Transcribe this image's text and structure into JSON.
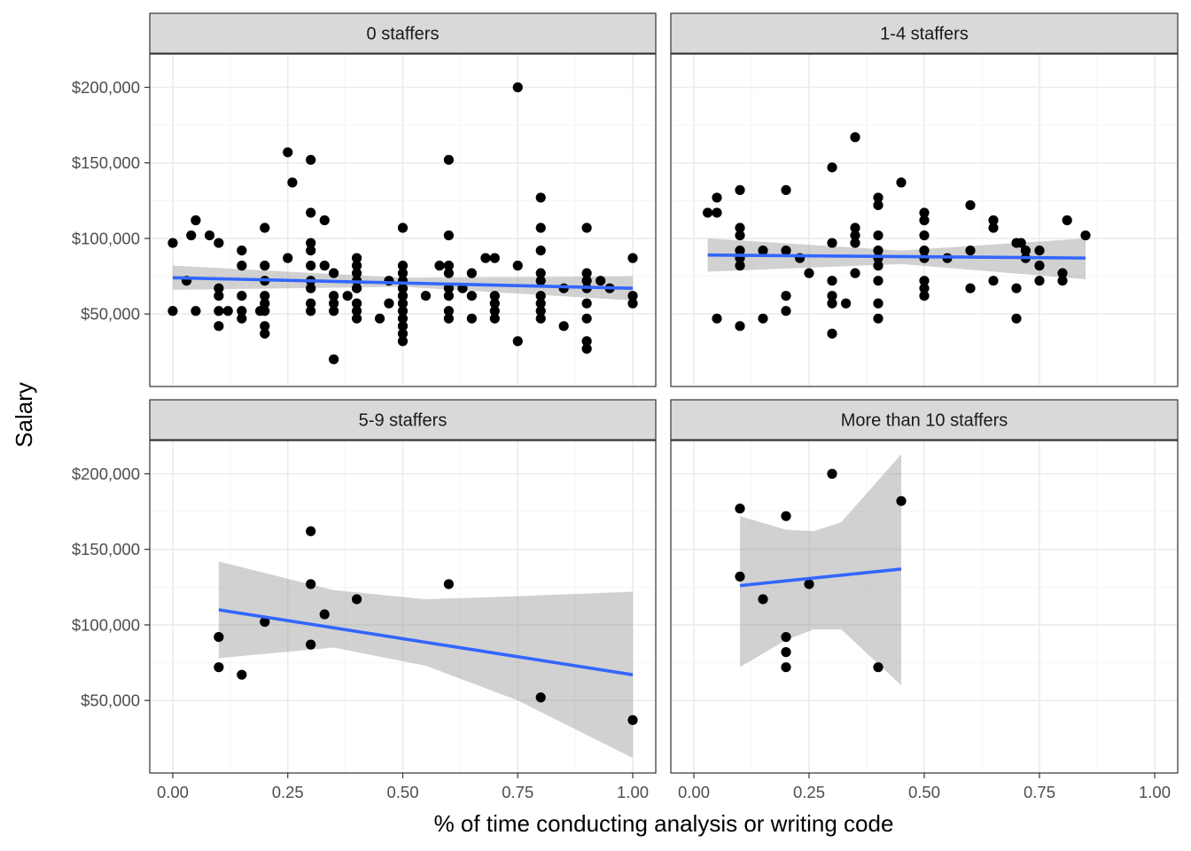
{
  "chart_data": {
    "type": "scatter",
    "facet_by": "staff size",
    "xlabel": "% of time conducting analysis or writing code",
    "ylabel": "Salary",
    "xlim": [
      -0.05,
      1.05
    ],
    "ylim": [
      2000,
      222000
    ],
    "x_ticks": [
      0,
      0.25,
      0.5,
      0.75,
      1
    ],
    "x_tick_labels": [
      "0.00",
      "0.25",
      "0.50",
      "0.75",
      "1.00"
    ],
    "y_ticks": [
      50000,
      100000,
      150000,
      200000
    ],
    "y_tick_labels": [
      "$50,000",
      "$100,000",
      "$150,000",
      "$200,000"
    ],
    "grid": true,
    "trend": "linear fit with grey confidence band",
    "colors": {
      "points": "#000000",
      "fit_line": "#3366FF",
      "band": "#999999",
      "strip": "#D9D9D9",
      "grid_major": "#EBEBEB",
      "grid_minor": "#F5F5F5",
      "axis_text": "#4D4D4D"
    },
    "panels": [
      {
        "title": "0 staffers",
        "fit": {
          "x": [
            0,
            1
          ],
          "y": [
            74000,
            67000
          ]
        },
        "band": {
          "x": [
            0,
            0.5,
            1
          ],
          "upper": [
            82000,
            74000,
            75000
          ],
          "lower": [
            66000,
            68000,
            59000
          ]
        },
        "points": [
          [
            0,
            97000
          ],
          [
            0,
            52000
          ],
          [
            0.03,
            72000
          ],
          [
            0.04,
            102000
          ],
          [
            0.05,
            112000
          ],
          [
            0.05,
            52000
          ],
          [
            0.08,
            102000
          ],
          [
            0.1,
            97000
          ],
          [
            0.1,
            67000
          ],
          [
            0.1,
            62000
          ],
          [
            0.1,
            52000
          ],
          [
            0.1,
            42000
          ],
          [
            0.12,
            52000
          ],
          [
            0.15,
            92000
          ],
          [
            0.15,
            82000
          ],
          [
            0.15,
            62000
          ],
          [
            0.15,
            52000
          ],
          [
            0.15,
            47000
          ],
          [
            0.19,
            52000
          ],
          [
            0.2,
            107000
          ],
          [
            0.2,
            82000
          ],
          [
            0.2,
            72000
          ],
          [
            0.2,
            62000
          ],
          [
            0.2,
            57000
          ],
          [
            0.2,
            52000
          ],
          [
            0.2,
            42000
          ],
          [
            0.2,
            37000
          ],
          [
            0.25,
            157000
          ],
          [
            0.25,
            87000
          ],
          [
            0.26,
            137000
          ],
          [
            0.3,
            152000
          ],
          [
            0.3,
            117000
          ],
          [
            0.3,
            97000
          ],
          [
            0.3,
            92000
          ],
          [
            0.3,
            82000
          ],
          [
            0.3,
            72000
          ],
          [
            0.3,
            67000
          ],
          [
            0.3,
            57000
          ],
          [
            0.3,
            52000
          ],
          [
            0.33,
            112000
          ],
          [
            0.33,
            82000
          ],
          [
            0.35,
            77000
          ],
          [
            0.35,
            62000
          ],
          [
            0.35,
            57000
          ],
          [
            0.35,
            52000
          ],
          [
            0.35,
            20000
          ],
          [
            0.38,
            62000
          ],
          [
            0.4,
            87000
          ],
          [
            0.4,
            82000
          ],
          [
            0.4,
            77000
          ],
          [
            0.4,
            72000
          ],
          [
            0.4,
            67000
          ],
          [
            0.4,
            57000
          ],
          [
            0.4,
            52000
          ],
          [
            0.4,
            47000
          ],
          [
            0.45,
            47000
          ],
          [
            0.47,
            72000
          ],
          [
            0.47,
            57000
          ],
          [
            0.5,
            107000
          ],
          [
            0.5,
            82000
          ],
          [
            0.5,
            77000
          ],
          [
            0.5,
            72000
          ],
          [
            0.5,
            67000
          ],
          [
            0.5,
            62000
          ],
          [
            0.5,
            57000
          ],
          [
            0.5,
            52000
          ],
          [
            0.5,
            47000
          ],
          [
            0.5,
            42000
          ],
          [
            0.5,
            37000
          ],
          [
            0.5,
            32000
          ],
          [
            0.55,
            62000
          ],
          [
            0.58,
            82000
          ],
          [
            0.6,
            152000
          ],
          [
            0.6,
            102000
          ],
          [
            0.6,
            82000
          ],
          [
            0.6,
            77000
          ],
          [
            0.6,
            67000
          ],
          [
            0.6,
            62000
          ],
          [
            0.6,
            52000
          ],
          [
            0.6,
            47000
          ],
          [
            0.63,
            67000
          ],
          [
            0.65,
            77000
          ],
          [
            0.65,
            62000
          ],
          [
            0.65,
            47000
          ],
          [
            0.68,
            87000
          ],
          [
            0.7,
            87000
          ],
          [
            0.7,
            62000
          ],
          [
            0.7,
            57000
          ],
          [
            0.7,
            52000
          ],
          [
            0.7,
            47000
          ],
          [
            0.75,
            200000
          ],
          [
            0.75,
            82000
          ],
          [
            0.75,
            32000
          ],
          [
            0.8,
            127000
          ],
          [
            0.8,
            107000
          ],
          [
            0.8,
            92000
          ],
          [
            0.8,
            77000
          ],
          [
            0.8,
            72000
          ],
          [
            0.8,
            62000
          ],
          [
            0.8,
            57000
          ],
          [
            0.8,
            52000
          ],
          [
            0.8,
            47000
          ],
          [
            0.85,
            67000
          ],
          [
            0.85,
            42000
          ],
          [
            0.9,
            107000
          ],
          [
            0.9,
            77000
          ],
          [
            0.9,
            72000
          ],
          [
            0.9,
            67000
          ],
          [
            0.9,
            57000
          ],
          [
            0.9,
            47000
          ],
          [
            0.9,
            32000
          ],
          [
            0.9,
            27000
          ],
          [
            0.93,
            72000
          ],
          [
            0.95,
            67000
          ],
          [
            1,
            87000
          ],
          [
            1,
            62000
          ],
          [
            1,
            57000
          ]
        ]
      },
      {
        "title": "1-4 staffers",
        "fit": {
          "x": [
            0.03,
            0.85
          ],
          "y": [
            89000,
            87000
          ]
        },
        "band": {
          "x": [
            0.03,
            0.45,
            0.85
          ],
          "upper": [
            100000,
            92000,
            100000
          ],
          "lower": [
            78000,
            83000,
            73000
          ]
        },
        "points": [
          [
            0.03,
            117000
          ],
          [
            0.05,
            117000
          ],
          [
            0.05,
            127000
          ],
          [
            0.05,
            47000
          ],
          [
            0.1,
            132000
          ],
          [
            0.1,
            107000
          ],
          [
            0.1,
            102000
          ],
          [
            0.1,
            92000
          ],
          [
            0.1,
            87000
          ],
          [
            0.1,
            82000
          ],
          [
            0.1,
            42000
          ],
          [
            0.15,
            92000
          ],
          [
            0.15,
            47000
          ],
          [
            0.2,
            132000
          ],
          [
            0.2,
            92000
          ],
          [
            0.2,
            62000
          ],
          [
            0.2,
            52000
          ],
          [
            0.23,
            87000
          ],
          [
            0.25,
            77000
          ],
          [
            0.3,
            147000
          ],
          [
            0.3,
            97000
          ],
          [
            0.3,
            72000
          ],
          [
            0.3,
            62000
          ],
          [
            0.3,
            57000
          ],
          [
            0.3,
            37000
          ],
          [
            0.33,
            57000
          ],
          [
            0.35,
            167000
          ],
          [
            0.35,
            107000
          ],
          [
            0.35,
            102000
          ],
          [
            0.35,
            97000
          ],
          [
            0.35,
            77000
          ],
          [
            0.4,
            127000
          ],
          [
            0.4,
            122000
          ],
          [
            0.4,
            102000
          ],
          [
            0.4,
            92000
          ],
          [
            0.4,
            87000
          ],
          [
            0.4,
            82000
          ],
          [
            0.4,
            72000
          ],
          [
            0.4,
            57000
          ],
          [
            0.4,
            47000
          ],
          [
            0.45,
            137000
          ],
          [
            0.5,
            117000
          ],
          [
            0.5,
            112000
          ],
          [
            0.5,
            102000
          ],
          [
            0.5,
            92000
          ],
          [
            0.5,
            87000
          ],
          [
            0.5,
            72000
          ],
          [
            0.5,
            67000
          ],
          [
            0.5,
            62000
          ],
          [
            0.55,
            87000
          ],
          [
            0.6,
            122000
          ],
          [
            0.6,
            92000
          ],
          [
            0.6,
            67000
          ],
          [
            0.65,
            112000
          ],
          [
            0.65,
            107000
          ],
          [
            0.65,
            72000
          ],
          [
            0.7,
            97000
          ],
          [
            0.7,
            67000
          ],
          [
            0.7,
            47000
          ],
          [
            0.71,
            97000
          ],
          [
            0.72,
            92000
          ],
          [
            0.72,
            87000
          ],
          [
            0.75,
            92000
          ],
          [
            0.75,
            82000
          ],
          [
            0.75,
            72000
          ],
          [
            0.8,
            77000
          ],
          [
            0.8,
            72000
          ],
          [
            0.81,
            112000
          ],
          [
            0.85,
            102000
          ]
        ]
      },
      {
        "title": "5-9 staffers",
        "fit": {
          "x": [
            0.1,
            1
          ],
          "y": [
            110000,
            67000
          ]
        },
        "band": {
          "x": [
            0.1,
            0.35,
            0.55,
            0.75,
            1
          ],
          "upper": [
            142000,
            123000,
            117000,
            119000,
            122000
          ],
          "lower": [
            78000,
            85000,
            73000,
            50000,
            12000
          ]
        },
        "points": [
          [
            0.1,
            92000
          ],
          [
            0.1,
            72000
          ],
          [
            0.15,
            67000
          ],
          [
            0.2,
            102000
          ],
          [
            0.3,
            162000
          ],
          [
            0.3,
            127000
          ],
          [
            0.3,
            87000
          ],
          [
            0.33,
            107000
          ],
          [
            0.4,
            117000
          ],
          [
            0.6,
            127000
          ],
          [
            0.8,
            52000
          ],
          [
            1,
            37000
          ]
        ]
      },
      {
        "title": "More than 10 staffers",
        "fit": {
          "x": [
            0.1,
            0.45
          ],
          "y": [
            126000,
            137000
          ]
        },
        "band": {
          "x": [
            0.1,
            0.2,
            0.26,
            0.32,
            0.45
          ],
          "upper": [
            172000,
            163000,
            162000,
            168000,
            213000
          ],
          "lower": [
            72000,
            90000,
            97000,
            97000,
            60000
          ]
        },
        "points": [
          [
            0.1,
            177000
          ],
          [
            0.1,
            132000
          ],
          [
            0.15,
            117000
          ],
          [
            0.2,
            172000
          ],
          [
            0.2,
            92000
          ],
          [
            0.2,
            82000
          ],
          [
            0.2,
            72000
          ],
          [
            0.25,
            127000
          ],
          [
            0.3,
            200000
          ],
          [
            0.4,
            72000
          ],
          [
            0.45,
            182000
          ]
        ]
      }
    ]
  }
}
